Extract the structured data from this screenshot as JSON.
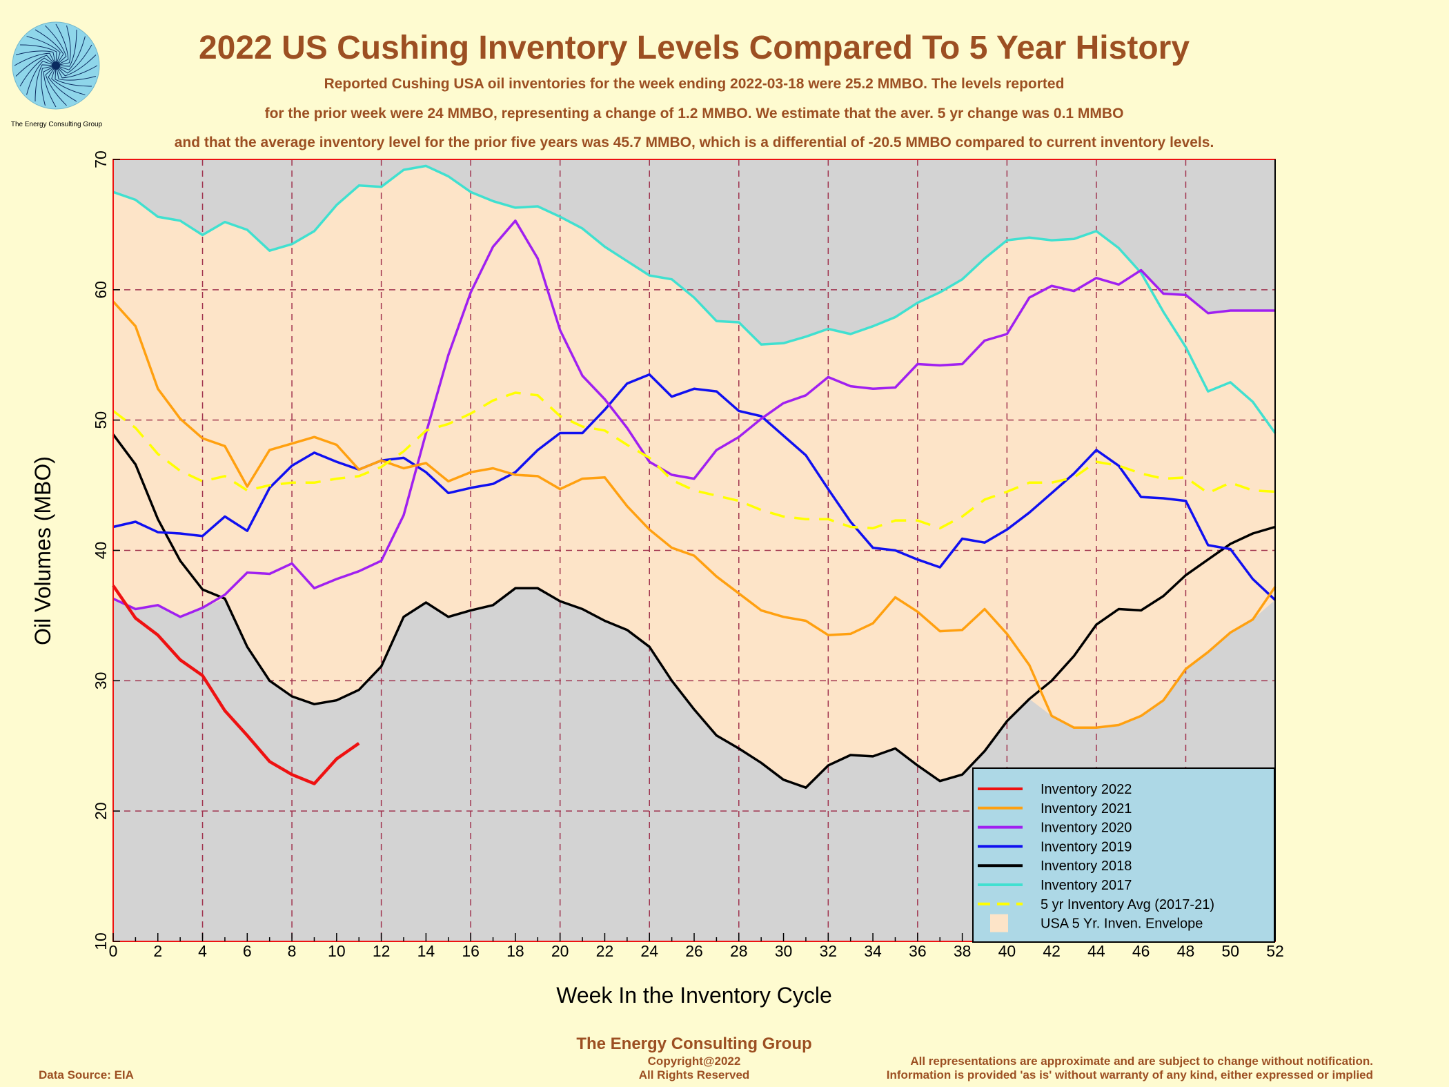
{
  "logo": {
    "caption": "The Energy Consulting Group"
  },
  "title": "2022 US Cushing Inventory Levels Compared To 5 Year History",
  "subtitle_lines": [
    "Reported Cushing USA oil inventories for the week ending 2022-03-18 were 25.2 MMBO.  The levels reported",
    "for the prior week were 24 MMBO, representing a change of 1.2 MMBO.  We estimate that the aver. 5 yr change was 0.1 MMBO",
    "and that the average inventory level for the prior five years was 45.7 MMBO, which is a differential of -20.5 MMBO compared to current inventory levels."
  ],
  "footer": {
    "company": "The Energy Consulting Group",
    "copyright": "Copyright@2022",
    "rights": "All Rights Reserved",
    "source": "Data Source: EIA",
    "disclaimer1": "All representations are approximate and are subject to change without notification.",
    "disclaimer2": "Information is provided 'as is' without warranty of any kind, either expressed or implied"
  },
  "chart_data": {
    "type": "line",
    "xlabel": "Week In the Inventory Cycle",
    "ylabel": "Oil Volumes (MBO)",
    "xlim": [
      0,
      52
    ],
    "ylim": [
      10,
      70
    ],
    "xticks": [
      0,
      2,
      4,
      6,
      8,
      10,
      12,
      14,
      16,
      18,
      20,
      22,
      24,
      26,
      28,
      30,
      32,
      34,
      36,
      38,
      40,
      42,
      44,
      46,
      48,
      50,
      52
    ],
    "yticks": [
      10,
      20,
      30,
      40,
      50,
      60,
      70
    ],
    "grid": true,
    "legend_position": "bottom-right",
    "colors": {
      "plot_background": "#d3d3d3",
      "envelope": "#fde4c8",
      "grid": "#a0334e",
      "legend_background": "#add8e6",
      "page_background": "#fefbd0"
    },
    "series": [
      {
        "name": "Inventory 2022",
        "color": "#ee1111",
        "width": 4.5,
        "values": [
          37.3,
          34.8,
          33.5,
          31.6,
          30.4,
          27.7,
          25.8,
          23.8,
          22.8,
          22.1,
          24.0,
          25.2
        ]
      },
      {
        "name": "Inventory 2021",
        "color": "#ffa010",
        "width": 3.5,
        "values": [
          59.1,
          57.2,
          52.4,
          50.1,
          48.6,
          48.0,
          44.9,
          47.7,
          48.2,
          48.7,
          48.1,
          46.2,
          46.9,
          46.3,
          46.7,
          45.3,
          46.0,
          46.3,
          45.8,
          45.7,
          44.7,
          45.5,
          45.6,
          43.4,
          41.6,
          40.2,
          39.6,
          38.0,
          36.7,
          35.4,
          34.9,
          34.6,
          33.5,
          33.6,
          34.4,
          36.4,
          35.3,
          33.8,
          33.9,
          35.5,
          33.6,
          31.2,
          27.3,
          26.4,
          26.4,
          26.6,
          27.3,
          28.5,
          30.9,
          32.2,
          33.7,
          34.7,
          37.2
        ]
      },
      {
        "name": "Inventory 2020",
        "color": "#a020f0",
        "width": 3.5,
        "values": [
          36.3,
          35.5,
          35.8,
          34.9,
          35.6,
          36.6,
          38.3,
          38.2,
          39.0,
          37.1,
          37.8,
          38.4,
          39.2,
          42.7,
          49.0,
          55.0,
          59.8,
          63.3,
          65.3,
          62.4,
          56.9,
          53.4,
          51.6,
          49.4,
          46.8,
          45.8,
          45.5,
          47.7,
          48.7,
          50.1,
          51.3,
          51.9,
          53.3,
          52.6,
          52.4,
          52.5,
          54.3,
          54.2,
          54.3,
          56.1,
          56.6,
          59.4,
          60.3,
          59.9,
          60.9,
          60.4,
          61.5,
          59.7,
          59.6,
          58.2,
          58.4,
          58.4,
          58.4
        ]
      },
      {
        "name": "Inventory 2019",
        "color": "#1010f0",
        "width": 3.5,
        "values": [
          41.8,
          42.2,
          41.4,
          41.3,
          41.1,
          42.6,
          41.5,
          44.8,
          46.5,
          47.5,
          46.8,
          46.2,
          46.9,
          47.1,
          46.0,
          44.4,
          44.8,
          45.1,
          46.0,
          47.7,
          49.0,
          49.0,
          50.8,
          52.8,
          53.5,
          51.8,
          52.4,
          52.2,
          50.7,
          50.3,
          48.8,
          47.3,
          44.7,
          42.2,
          40.2,
          40.0,
          39.3,
          38.7,
          40.9,
          40.6,
          41.6,
          42.9,
          44.4,
          45.9,
          47.7,
          46.5,
          44.1,
          44.0,
          43.8,
          40.4,
          40.1,
          37.8,
          36.2
        ]
      },
      {
        "name": "Inventory 2018",
        "color": "#000000",
        "width": 3.5,
        "values": [
          48.9,
          46.6,
          42.4,
          39.2,
          37.0,
          36.3,
          32.6,
          30.0,
          28.8,
          28.2,
          28.5,
          29.3,
          31.1,
          34.9,
          36.0,
          34.9,
          35.4,
          35.8,
          37.1,
          37.1,
          36.1,
          35.5,
          34.6,
          33.9,
          32.6,
          30.0,
          27.8,
          25.8,
          24.8,
          23.7,
          22.4,
          21.8,
          23.5,
          24.3,
          24.2,
          24.8,
          23.5,
          22.3,
          22.8,
          24.6,
          26.9,
          28.6,
          30.0,
          31.9,
          34.3,
          35.5,
          35.4,
          36.5,
          38.1,
          39.3,
          40.5,
          41.3,
          41.8
        ]
      },
      {
        "name": "Inventory 2017",
        "color": "#40e0d0",
        "width": 3.5,
        "values": [
          67.5,
          66.9,
          65.6,
          65.3,
          64.2,
          65.2,
          64.6,
          63.0,
          63.5,
          64.5,
          66.5,
          68.0,
          67.9,
          69.2,
          69.5,
          68.7,
          67.5,
          66.8,
          66.3,
          66.4,
          65.6,
          64.7,
          63.3,
          62.2,
          61.1,
          60.8,
          59.4,
          57.6,
          57.5,
          55.8,
          55.9,
          56.4,
          57.0,
          56.6,
          57.2,
          57.9,
          59.0,
          59.8,
          60.8,
          62.4,
          63.8,
          64.0,
          63.8,
          63.9,
          64.5,
          63.2,
          61.3,
          58.3,
          55.6,
          52.2,
          52.9,
          51.4,
          49.0
        ]
      },
      {
        "name": "5 yr Inventory Avg (2017-21)",
        "color": "#ffff00",
        "width": 3.5,
        "dashed": true,
        "values": [
          50.7,
          49.4,
          47.4,
          46.1,
          45.3,
          45.7,
          44.6,
          45.0,
          45.2,
          45.2,
          45.5,
          45.7,
          46.4,
          47.6,
          49.2,
          49.7,
          50.5,
          51.5,
          52.1,
          51.9,
          50.3,
          49.5,
          49.2,
          48.1,
          47.1,
          45.4,
          44.6,
          44.2,
          43.8,
          43.1,
          42.6,
          42.4,
          42.4,
          41.8,
          41.7,
          42.3,
          42.3,
          41.7,
          42.6,
          43.9,
          44.5,
          45.2,
          45.2,
          45.6,
          46.8,
          46.5,
          45.9,
          45.5,
          45.6,
          44.4,
          45.2,
          44.6,
          44.5
        ]
      }
    ],
    "envelope_name": "USA 5 Yr. Inven. Envelope"
  }
}
